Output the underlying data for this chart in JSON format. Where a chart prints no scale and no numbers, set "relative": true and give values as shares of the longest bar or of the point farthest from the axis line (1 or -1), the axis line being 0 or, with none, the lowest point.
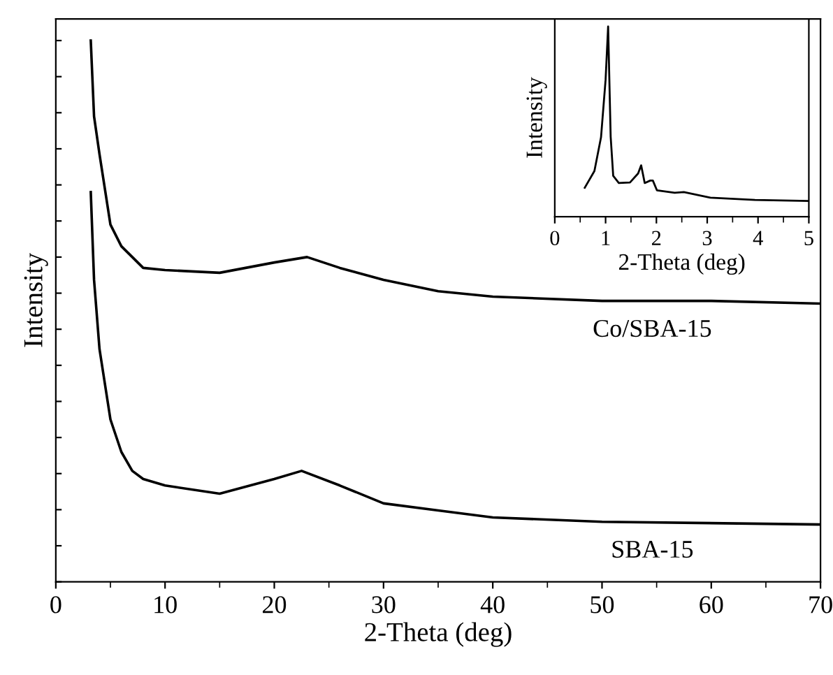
{
  "chart_data": [
    {
      "type": "line",
      "xlabel": "2-Theta (deg)",
      "ylabel": "Intensity",
      "relative": true,
      "xlim": [
        0,
        70
      ],
      "xticks": [
        0,
        10,
        20,
        30,
        40,
        50,
        60,
        70
      ],
      "tick_labels": "x",
      "legend": false,
      "series": [
        {
          "name": "Co/SBA-15",
          "color": "#000000",
          "x": [
            3.2,
            3.5,
            4,
            5,
            6,
            7,
            8,
            10,
            15,
            20,
            23,
            26,
            30,
            35,
            40,
            50,
            60,
            70
          ],
          "values": [
            1.0,
            0.86,
            0.79,
            0.66,
            0.62,
            0.6,
            0.58,
            0.576,
            0.571,
            0.59,
            0.6,
            0.58,
            0.558,
            0.537,
            0.527,
            0.519,
            0.519,
            0.514
          ]
        },
        {
          "name": "SBA-15",
          "color": "#000000",
          "x": [
            3.2,
            3.5,
            4,
            5,
            6,
            7,
            8,
            10,
            15,
            20,
            22.5,
            26,
            30,
            35,
            40,
            50,
            70
          ],
          "values": [
            0.72,
            0.558,
            0.43,
            0.3,
            0.24,
            0.205,
            0.19,
            0.178,
            0.163,
            0.19,
            0.205,
            0.178,
            0.145,
            0.132,
            0.119,
            0.111,
            0.106
          ]
        }
      ]
    },
    {
      "type": "line",
      "xlabel": "2-Theta (deg)",
      "ylabel": "Intensity",
      "relative": true,
      "xlim": [
        0,
        5
      ],
      "xticks": [
        0,
        1,
        2,
        3,
        4,
        5
      ],
      "tick_labels": "x",
      "legend": false,
      "series": [
        {
          "color": "#000000",
          "x": [
            0.59,
            0.78,
            0.91,
            1.0,
            1.05,
            1.1,
            1.15,
            1.26,
            1.48,
            1.64,
            1.7,
            1.77,
            1.88,
            1.93,
            2.01,
            2.36,
            2.54,
            3.06,
            3.94,
            4.99
          ],
          "values": [
            0.152,
            0.24,
            0.417,
            0.72,
            1.0,
            0.42,
            0.215,
            0.177,
            0.18,
            0.227,
            0.27,
            0.177,
            0.19,
            0.19,
            0.139,
            0.126,
            0.129,
            0.1,
            0.088,
            0.083
          ]
        }
      ]
    }
  ]
}
